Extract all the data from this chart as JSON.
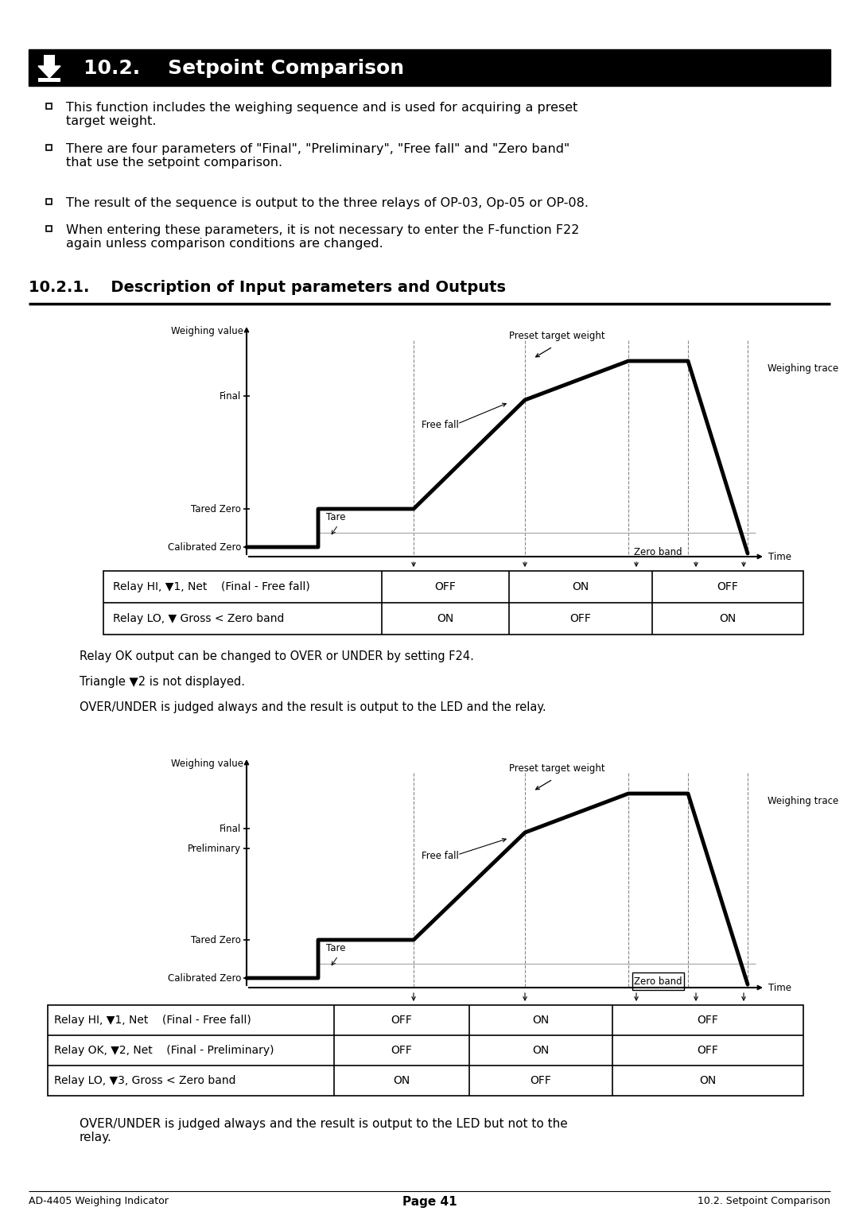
{
  "title_section": "10.2.    Setpoint Comparison",
  "subsection_title": "10.2.1.    Description of Input parameters and Outputs",
  "bullet1": "This function includes the weighing sequence and is used for acquiring a preset\ntarget weight.",
  "bullet2": "There are four parameters of \"Final\", \"Preliminary\", \"Free fall\" and \"Zero band\"\nthat use the setpoint comparison.",
  "bullet3": "The result of the sequence is output to the three relays of OP-03, Op-05 or OP-08.",
  "bullet4": "When entering these parameters, it is not necessary to enter the F-function F22\nagain unless comparison conditions are changed.",
  "footer_left": "AD-4405 Weighing Indicator",
  "footer_center": "Page 41",
  "footer_right": "10.2. Setpoint Comparison",
  "note1_1": "Relay OK output can be changed to OVER or UNDER by setting F24.",
  "note1_2": "Triangle ▼2 is not displayed.",
  "note1_3": "OVER/UNDER is judged always and the result is output to the LED and the relay.",
  "note2_1": "OVER/UNDER is judged always and the result is output to the LED but not to the\nrelay.",
  "tbl1_rows": [
    [
      "Relay HI, ▼1, Net    (Final - Free fall)",
      "OFF",
      "ON",
      "OFF"
    ],
    [
      "Relay LO, ▼ Gross < Zero band",
      "ON",
      "OFF",
      "ON"
    ]
  ],
  "tbl2_rows": [
    [
      "Relay HI, ▼1, Net    (Final - Free fall)",
      "OFF",
      "ON",
      "OFF"
    ],
    [
      "Relay OK, ▼2, Net    (Final - Preliminary)",
      "OFF",
      "ON",
      "OFF"
    ],
    [
      "Relay LO, ▼3, Gross < Zero band",
      "ON",
      "OFF",
      "ON"
    ]
  ]
}
